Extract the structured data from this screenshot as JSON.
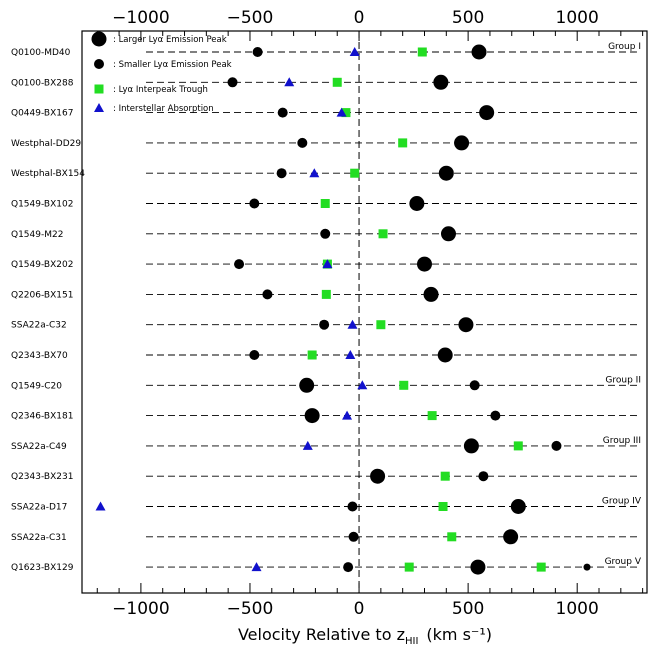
{
  "chart_data": {
    "type": "scatter",
    "xlabel": "Velocity Relative to z",
    "xlabel_sub": "HII",
    "xlabel_units": "(km s⁻¹)",
    "xlim": [
      -1270,
      1320
    ],
    "xticks": [
      -1000,
      -500,
      0,
      500,
      1000
    ],
    "xtick_labels": [
      "−1000",
      "−500",
      "0",
      "500",
      "1000"
    ],
    "zero_line": true,
    "legend": [
      {
        "marker": "large-circle",
        "label": ": Larger Lyα Emission Peak"
      },
      {
        "marker": "small-circle",
        "label": ": Smaller Lyα Emission Peak"
      },
      {
        "marker": "square",
        "label": ": Lyα Interpeak Trough"
      },
      {
        "marker": "triangle",
        "label": ": Interstellar Absorption"
      }
    ],
    "colors": {
      "emission": "#000000",
      "trough": "#22dd22",
      "absorption": "#1111cc"
    },
    "rows": [
      {
        "name": "Q0100-MD40",
        "large": 550,
        "small": -465,
        "trough": 290,
        "abs": -20
      },
      {
        "name": "Q0100-BX288",
        "large": 375,
        "small": -580,
        "trough": -100,
        "abs": -320
      },
      {
        "name": "Q0449-BX167",
        "large": 585,
        "small": -350,
        "trough": -60,
        "abs": -80
      },
      {
        "name": "Westphal-DD29",
        "large": 470,
        "small": -260,
        "trough": 200,
        "abs": null
      },
      {
        "name": "Westphal-BX154",
        "large": 400,
        "small": -355,
        "trough": -20,
        "abs": -205
      },
      {
        "name": "Q1549-BX102",
        "large": 265,
        "small": -480,
        "trough": -155,
        "abs": null
      },
      {
        "name": "Q1549-M22",
        "large": 410,
        "small": -155,
        "trough": 110,
        "abs": null
      },
      {
        "name": "Q1549-BX202",
        "large": 300,
        "small": -550,
        "trough": -145,
        "abs": -145
      },
      {
        "name": "Q2206-BX151",
        "large": 330,
        "small": -420,
        "trough": -150,
        "abs": null
      },
      {
        "name": "SSA22a-C32",
        "large": 490,
        "small": -160,
        "trough": 100,
        "abs": -30
      },
      {
        "name": "Q2343-BX70",
        "large": 395,
        "small": -480,
        "trough": -215,
        "abs": -40
      },
      {
        "name": "Q1549-C20",
        "large": -240,
        "small": 530,
        "trough": 205,
        "abs": 15
      },
      {
        "name": "Q2346-BX181",
        "large": -215,
        "small": 625,
        "trough": 335,
        "abs": -55
      },
      {
        "name": "SSA22a-C49",
        "large": 515,
        "small": 905,
        "trough": 730,
        "abs": -235
      },
      {
        "name": "Q2343-BX231",
        "large": 85,
        "small": 570,
        "trough": 395,
        "abs": null
      },
      {
        "name": "SSA22a-D17",
        "large": 730,
        "small": -30,
        "trough": 385,
        "abs": -1185
      },
      {
        "name": "SSA22a-C31",
        "large": 695,
        "small": -25,
        "trough": 425,
        "abs": null
      },
      {
        "name": "Q1623-BX129",
        "large": 545,
        "small": -50,
        "trough": 230,
        "abs": -470,
        "trough2": 835,
        "small2": 1045
      }
    ],
    "groups": [
      {
        "label": "Group I",
        "row": 0
      },
      {
        "label": "Group II",
        "row": 11
      },
      {
        "label": "Group III",
        "row": 13
      },
      {
        "label": "Group IV",
        "row": 15
      },
      {
        "label": "Group V",
        "row": 17
      }
    ]
  }
}
